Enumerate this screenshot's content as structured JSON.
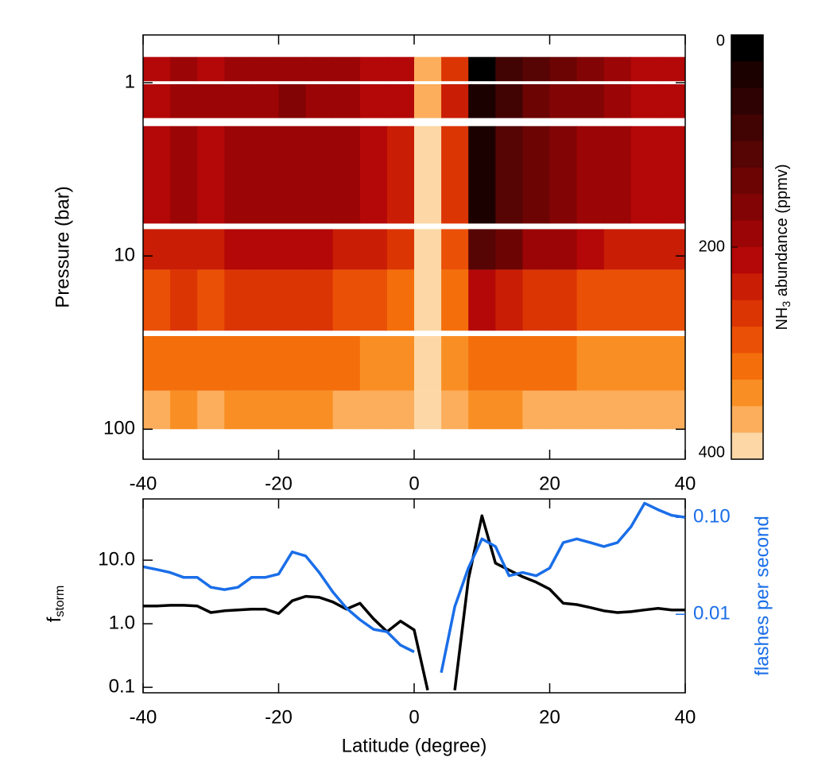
{
  "chart_data": [
    {
      "type": "heatmap",
      "ylabel": "Pressure (bar)",
      "colorbar_label": [
        "NH",
        "3",
        " abundance (ppmv)"
      ],
      "xlim": [
        -40,
        40
      ],
      "xticks": [
        -40,
        -20,
        0,
        20,
        40
      ],
      "ylim": [
        0.53,
        149
      ],
      "ylog": true,
      "yinverted": true,
      "yticks": [
        1,
        10,
        100
      ],
      "xbins": [
        -40,
        -36,
        -32,
        -28,
        -24,
        -20,
        -16,
        -12,
        -8,
        -4,
        0,
        4,
        8,
        12,
        16,
        20,
        24,
        28,
        32,
        36,
        40
      ],
      "ybands": [
        [
          0.71,
          0.98
        ],
        [
          1.02,
          1.6
        ],
        [
          1.78,
          6.5
        ],
        [
          7,
          12
        ],
        [
          12,
          27
        ],
        [
          29,
          60
        ],
        [
          60,
          100
        ]
      ],
      "values": [
        [
          200,
          190,
          200,
          190,
          185,
          175,
          185,
          190,
          200,
          220,
          370,
          250,
          20,
          80,
          120,
          140,
          160,
          185,
          200,
          200
        ],
        [
          200,
          185,
          195,
          185,
          180,
          170,
          180,
          185,
          200,
          215,
          370,
          240,
          30,
          90,
          130,
          150,
          170,
          190,
          200,
          200
        ],
        [
          205,
          190,
          200,
          190,
          185,
          175,
          185,
          195,
          210,
          225,
          375,
          250,
          40,
          100,
          140,
          160,
          180,
          195,
          205,
          205
        ],
        [
          235,
          225,
          230,
          220,
          215,
          210,
          215,
          225,
          240,
          260,
          380,
          280,
          110,
          140,
          175,
          195,
          215,
          225,
          230,
          230
        ],
        [
          280,
          270,
          275,
          265,
          265,
          260,
          265,
          275,
          285,
          300,
          385,
          310,
          220,
          240,
          260,
          270,
          280,
          285,
          285,
          285
        ],
        [
          320,
          315,
          320,
          315,
          315,
          310,
          315,
          320,
          330,
          340,
          390,
          340,
          300,
          310,
          315,
          320,
          325,
          325,
          325,
          325
        ],
        [
          350,
          345,
          350,
          345,
          345,
          345,
          345,
          350,
          355,
          360,
          395,
          360,
          340,
          345,
          350,
          350,
          355,
          355,
          355,
          355
        ]
      ],
      "levels": [
        0,
        25,
        50,
        75,
        100,
        125,
        150,
        175,
        200,
        225,
        250,
        275,
        300,
        325,
        350,
        375,
        400
      ],
      "colorscale": [
        "#000000",
        "#1c0101",
        "#2e0202",
        "#420303",
        "#560404",
        "#6c0404",
        "#830404",
        "#9c0505",
        "#b40707",
        "#c91d05",
        "#dc3504",
        "#ea5006",
        "#f46f0c",
        "#f98f24",
        "#fcae5c",
        "#fdd7a6"
      ],
      "clim": [
        0,
        400
      ],
      "cticks": [
        0,
        200,
        400
      ]
    },
    {
      "type": "line",
      "xlabel": "Latitude (degree)",
      "ylabel": "f",
      "ylabel_sub": "storm",
      "y2label": "flashes per second",
      "xlim": [
        -40,
        40
      ],
      "xticks": [
        -40,
        -20,
        0,
        20,
        40
      ],
      "ylim": [
        0.082,
        92
      ],
      "ylog": true,
      "yticks": [
        0.1,
        {
          "value": 1,
          "label": "1.0"
        },
        {
          "value": 10,
          "label": "10.0"
        }
      ],
      "y2lim": [
        0.00155,
        0.155
      ],
      "y2log": true,
      "y2ticks": [
        0.01,
        {
          "value": 0.1,
          "label": "0.10"
        }
      ],
      "y2color": "#1a6ee8",
      "x": [
        -40,
        -38,
        -36,
        -34,
        -32,
        -30,
        -28,
        -26,
        -24,
        -22,
        -20,
        -18,
        -16,
        -14,
        -12,
        -10,
        -8,
        -6,
        -4,
        -2,
        0,
        2,
        4,
        6,
        8,
        10,
        12,
        14,
        16,
        18,
        20,
        22,
        24,
        26,
        28,
        30,
        32,
        34,
        36,
        38,
        40
      ],
      "series": [
        {
          "color": "#000000",
          "axis": "y",
          "values": [
            1.9,
            1.9,
            1.95,
            1.95,
            1.9,
            1.5,
            1.6,
            1.65,
            1.7,
            1.7,
            1.45,
            2.3,
            2.7,
            2.6,
            2.2,
            1.7,
            2.1,
            1.2,
            0.75,
            1.1,
            0.8,
            0.09,
            null,
            0.09,
            5,
            50,
            9,
            7,
            5.5,
            4.5,
            3.5,
            2.1,
            2.0,
            1.8,
            1.6,
            1.5,
            1.55,
            1.65,
            1.75,
            1.65,
            1.65
          ]
        },
        {
          "color": "#1a6ee8",
          "axis": "y2",
          "values": [
            0.031,
            0.029,
            0.027,
            0.024,
            0.024,
            0.019,
            0.018,
            0.019,
            0.024,
            0.024,
            0.026,
            0.044,
            0.04,
            0.027,
            0.017,
            0.0116,
            0.0088,
            0.007,
            0.0066,
            0.0048,
            0.0041,
            null,
            0.0025,
            0.012,
            0.03,
            0.06,
            0.05,
            0.025,
            0.027,
            0.025,
            0.03,
            0.055,
            0.06,
            0.055,
            0.05,
            0.055,
            0.08,
            0.14,
            0.12,
            0.105,
            0.1
          ]
        }
      ]
    }
  ]
}
